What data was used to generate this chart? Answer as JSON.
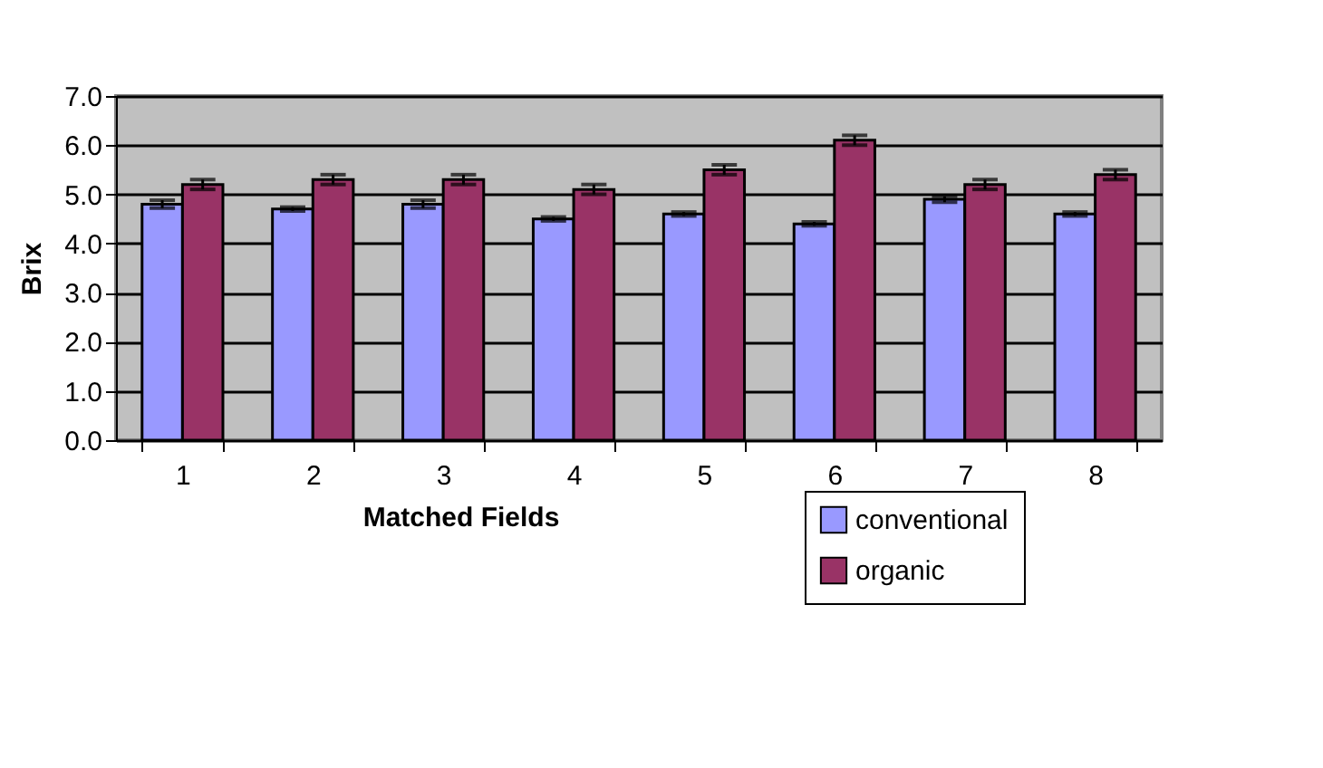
{
  "chart_data": {
    "type": "bar",
    "xlabel": "Matched Fields",
    "ylabel": "Brix",
    "categories": [
      "1",
      "2",
      "3",
      "4",
      "5",
      "6",
      "7",
      "8"
    ],
    "series": [
      {
        "name": "conventional",
        "color": "#9999ff",
        "values": [
          4.8,
          4.7,
          4.8,
          4.5,
          4.6,
          4.4,
          4.9,
          4.6
        ],
        "errors": [
          0.08,
          0.04,
          0.08,
          0.04,
          0.04,
          0.04,
          0.06,
          0.04
        ]
      },
      {
        "name": "organic",
        "color": "#993366",
        "values": [
          5.2,
          5.3,
          5.3,
          5.1,
          5.5,
          6.1,
          5.2,
          5.4
        ],
        "errors": [
          0.1,
          0.1,
          0.1,
          0.1,
          0.1,
          0.1,
          0.1,
          0.1
        ]
      }
    ],
    "ylim": [
      0,
      7
    ],
    "yticks": [
      {
        "value": 0,
        "label": "0.0"
      },
      {
        "value": 1,
        "label": "1.0"
      },
      {
        "value": 2,
        "label": "2.0"
      },
      {
        "value": 3,
        "label": "3.0"
      },
      {
        "value": 4,
        "label": "4.0"
      },
      {
        "value": 5,
        "label": "5.0"
      },
      {
        "value": 6,
        "label": "6.0"
      },
      {
        "value": 7,
        "label": "7.0"
      }
    ],
    "grid": "y",
    "legend": "bottom right"
  }
}
